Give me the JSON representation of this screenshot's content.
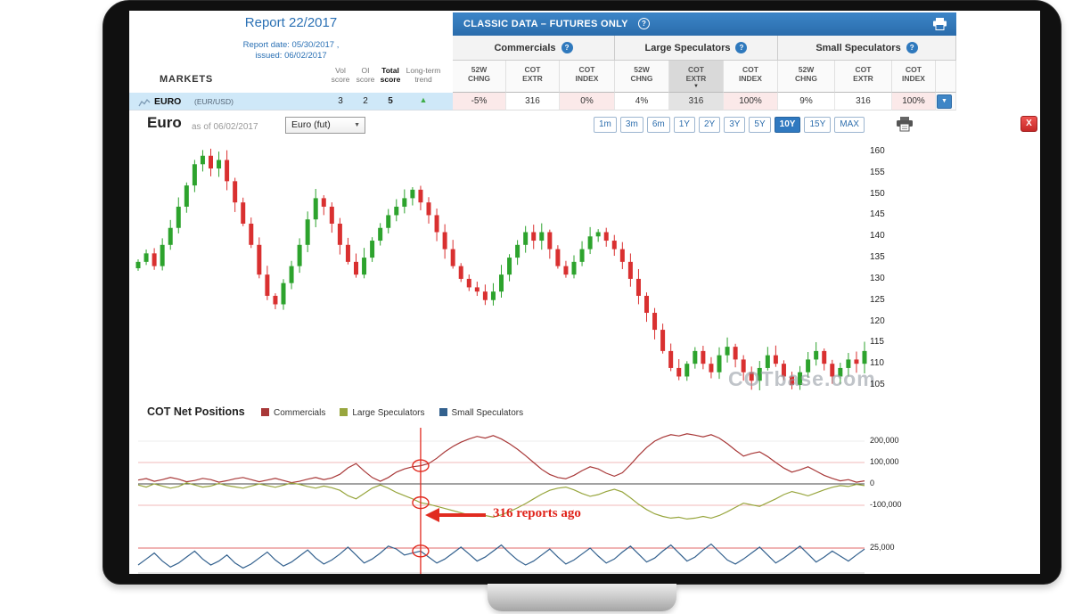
{
  "report_panel": {
    "title": "Report 22/2017",
    "date_line1": "Report date: 05/30/2017 ,",
    "date_line2": "issued: 06/02/2017",
    "markets_label": "MARKETS",
    "score_columns": [
      {
        "line1": "Vol",
        "line2": "score",
        "bold": false
      },
      {
        "line1": "OI",
        "line2": "score",
        "bold": false
      },
      {
        "line1": "Total",
        "line2": "score",
        "bold": true
      },
      {
        "line1": "Long-term",
        "line2": "trend",
        "bold": false
      }
    ]
  },
  "classic_bar": {
    "title": "CLASSIC DATA – FUTURES ONLY",
    "help": "?"
  },
  "table": {
    "groups": [
      {
        "label": "Commercials",
        "help": "?"
      },
      {
        "label": "Large Speculators",
        "help": "?"
      },
      {
        "label": "Small Speculators",
        "help": "?"
      }
    ],
    "subcolumns": [
      {
        "line1": "52W",
        "line2": "CHNG"
      },
      {
        "line1": "COT",
        "line2": "EXTR"
      },
      {
        "line1": "COT",
        "line2": "INDEX"
      }
    ],
    "selected_column": {
      "group": 1,
      "col": 1
    }
  },
  "euro_row": {
    "symbol": "EURO",
    "pair": "(EUR/USD)",
    "vol_score": "3",
    "oi_score": "2",
    "total_score": "5",
    "trend_icon": "up-arrow",
    "values": [
      "-5%",
      "316",
      "0%",
      "4%",
      "316",
      "100%",
      "9%",
      "316",
      "100%"
    ],
    "cell_styles": [
      "pink",
      "plain",
      "pink",
      "plain",
      "selected",
      "pink",
      "plain",
      "plain",
      "pink"
    ]
  },
  "chart_header": {
    "title": "Euro",
    "as_of": "as of 06/02/2017",
    "instrument_select": "Euro (fut)",
    "ranges": [
      "1m",
      "3m",
      "6m",
      "1Y",
      "2Y",
      "3Y",
      "5Y",
      "10Y",
      "15Y",
      "MAX"
    ],
    "active_range": "10Y",
    "close_label": "X"
  },
  "watermark": "COTbase.com",
  "cot_section": {
    "title": "COT Net Positions",
    "legend": [
      {
        "label": "Commercials",
        "color": "#a83838"
      },
      {
        "label": "Large Speculators",
        "color": "#98a63e"
      },
      {
        "label": "Small Speculators",
        "color": "#33618e"
      }
    ]
  },
  "chart_data": [
    {
      "type": "candlestick",
      "title": "Euro",
      "as_of": "06/02/2017",
      "y_ticks": [
        160,
        155,
        150,
        145,
        140,
        135,
        130,
        125,
        120,
        115,
        110,
        105
      ],
      "ylim": [
        103,
        162
      ],
      "up_color": "#2da32d",
      "down_color": "#d93030",
      "closes": [
        134,
        136,
        133,
        138,
        142,
        147,
        152,
        157,
        159,
        156,
        158,
        153,
        148,
        143,
        138,
        131,
        126,
        124,
        129,
        133,
        138,
        144,
        149,
        147,
        143,
        138,
        134,
        131,
        135,
        139,
        142,
        145,
        147,
        149,
        151,
        148,
        145,
        141,
        137,
        133,
        130,
        128,
        127,
        125,
        127,
        131,
        135,
        138,
        141,
        139,
        141,
        137,
        133,
        131,
        134,
        137,
        140,
        141,
        139,
        137,
        134,
        130,
        126,
        122,
        118,
        113,
        109,
        107,
        110,
        113,
        110,
        108,
        112,
        114,
        111,
        108,
        106,
        109,
        112,
        110,
        107,
        105,
        108,
        111,
        113,
        110,
        107,
        109,
        111,
        110,
        113
      ]
    },
    {
      "type": "line",
      "title": "COT Net Positions",
      "panels": [
        {
          "y_ticks": [
            {
              "label": "200,000",
              "value": 200000
            },
            {
              "label": "100,000",
              "value": 100000
            },
            {
              "label": "0",
              "value": 0
            },
            {
              "label": "-100,000",
              "value": -100000
            }
          ],
          "series": [
            {
              "name": "Commercials",
              "color": "#a83838",
              "values_thousands": [
                18,
                25,
                12,
                20,
                30,
                22,
                10,
                16,
                26,
                20,
                8,
                15,
                24,
                30,
                20,
                10,
                18,
                26,
                16,
                6,
                12,
                22,
                30,
                20,
                28,
                45,
                75,
                95,
                60,
                30,
                12,
                30,
                55,
                70,
                80,
                85,
                95,
                120,
                150,
                175,
                195,
                210,
                222,
                214,
                226,
                210,
                188,
                162,
                132,
                100,
                68,
                44,
                30,
                24,
                40,
                62,
                80,
                70,
                50,
                36,
                52,
                90,
                132,
                170,
                200,
                218,
                230,
                224,
                234,
                228,
                220,
                230,
                214,
                188,
                158,
                130,
                142,
                150,
                128,
                100,
                74,
                55,
                66,
                80,
                60,
                40,
                26,
                14,
                20,
                8,
                14
              ]
            },
            {
              "name": "Large Speculators",
              "color": "#98a63e",
              "values_thousands": [
                -5,
                -15,
                0,
                -10,
                -20,
                -12,
                5,
                -5,
                -15,
                -10,
                2,
                -8,
                -14,
                -20,
                -10,
                0,
                -8,
                -16,
                -6,
                4,
                -2,
                -12,
                -20,
                -10,
                -18,
                -30,
                -55,
                -70,
                -45,
                -20,
                -5,
                -20,
                -40,
                -55,
                -70,
                -88,
                -95,
                -105,
                -115,
                -125,
                -135,
                -145,
                -152,
                -148,
                -155,
                -145,
                -130,
                -112,
                -92,
                -70,
                -48,
                -30,
                -20,
                -15,
                -28,
                -45,
                -58,
                -50,
                -36,
                -25,
                -38,
                -65,
                -95,
                -120,
                -140,
                -152,
                -160,
                -156,
                -164,
                -160,
                -152,
                -160,
                -148,
                -130,
                -110,
                -90,
                -98,
                -105,
                -88,
                -70,
                -50,
                -36,
                -45,
                -56,
                -42,
                -28,
                -16,
                -8,
                -12,
                -2,
                -8
              ]
            }
          ]
        },
        {
          "y_ticks": [
            {
              "label": "25,000",
              "value": 25000
            }
          ],
          "series": [
            {
              "name": "Small Speculators",
              "color": "#33618e",
              "values_thousands": [
                8,
                14,
                20,
                12,
                6,
                10,
                16,
                22,
                14,
                8,
                12,
                18,
                10,
                5,
                9,
                15,
                21,
                13,
                7,
                11,
                17,
                23,
                15,
                9,
                13,
                19,
                26,
                18,
                10,
                14,
                20,
                27,
                24,
                18,
                20,
                22,
                16,
                10,
                14,
                20,
                26,
                19,
                12,
                16,
                22,
                28,
                20,
                13,
                8,
                12,
                18,
                24,
                16,
                9,
                13,
                19,
                25,
                17,
                10,
                14,
                21,
                27,
                19,
                11,
                15,
                22,
                28,
                20,
                12,
                16,
                23,
                29,
                21,
                13,
                9,
                14,
                20,
                26,
                18,
                10,
                15,
                21,
                27,
                19,
                11,
                16,
                22,
                17,
                12,
                18,
                24
              ]
            }
          ]
        }
      ],
      "annotation": {
        "label": "316 reports ago",
        "index": 35
      }
    }
  ]
}
